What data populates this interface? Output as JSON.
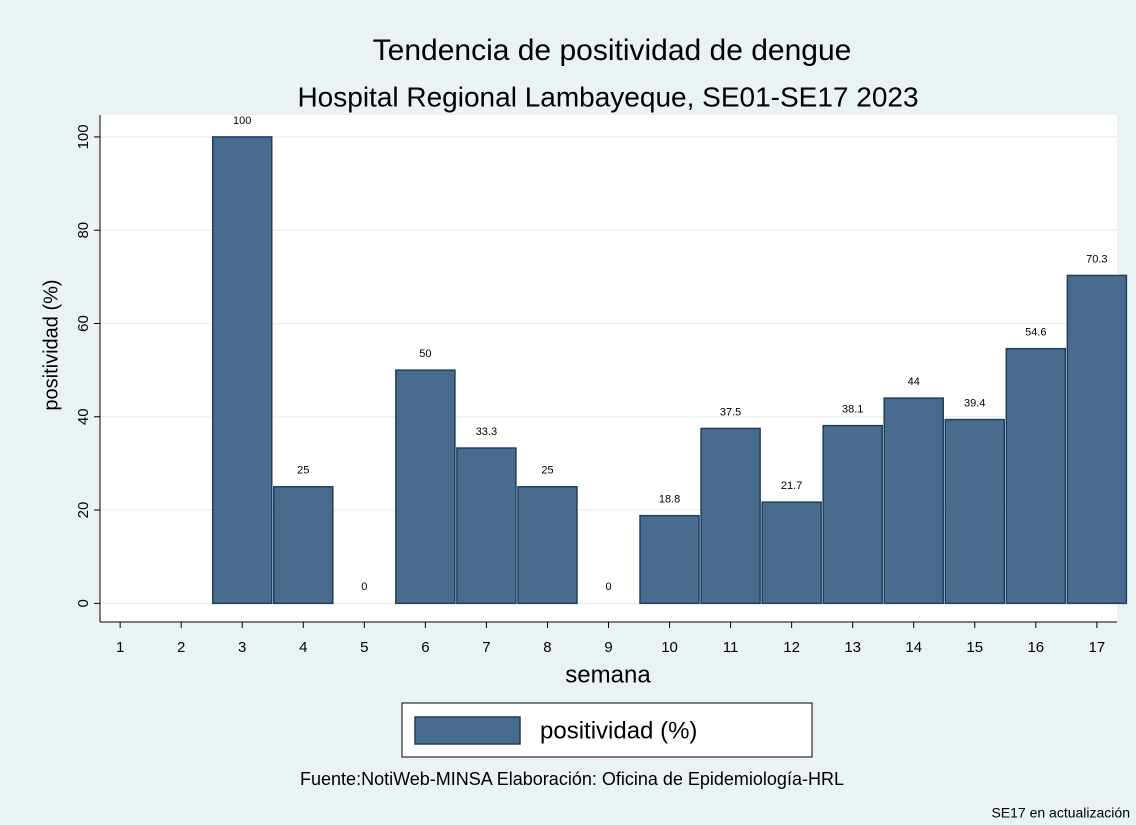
{
  "chart_data": {
    "type": "bar",
    "title": "Tendencia de positividad de dengue",
    "subtitle": "Hospital Regional Lambayeque, SE01-SE17 2023",
    "x_label": "semana",
    "y_label": "positividad (%)",
    "x": [
      1,
      2,
      3,
      4,
      5,
      6,
      7,
      8,
      9,
      10,
      11,
      12,
      13,
      14,
      15,
      16,
      17
    ],
    "series": [
      {
        "name": "positividad (%)",
        "color": "#496c8e",
        "values": [
          null,
          null,
          100,
          25,
          0,
          50,
          33.3,
          25,
          0,
          18.8,
          37.5,
          21.7,
          38.1,
          44,
          39.4,
          54.6,
          70.3
        ]
      }
    ],
    "xlim": [
      0.67,
      17.33
    ],
    "xticks": [
      1,
      2,
      3,
      4,
      5,
      6,
      7,
      8,
      9,
      10,
      11,
      12,
      13,
      14,
      15,
      16,
      17
    ],
    "ylim": [
      -4,
      104.7
    ],
    "yticks": [
      0,
      20,
      40,
      60,
      80,
      100
    ],
    "grid": true,
    "note": "Fuente:NotiWeb-MINSA Elaboración: Oficina de Epidemiología-HRL",
    "caption": "SE17 en actualización"
  }
}
